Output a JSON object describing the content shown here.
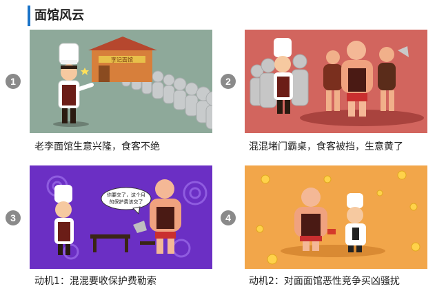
{
  "section": {
    "title": "面馆风云"
  },
  "panels": [
    {
      "number": "1",
      "caption": "老李面馆生意兴隆，食客不绝",
      "sign_text": "李记面馆",
      "bg": "#8ea99a"
    },
    {
      "number": "2",
      "caption": "混混堵门霸桌，食客被挡，生意黄了",
      "bg": "#d2655e"
    },
    {
      "number": "3",
      "caption": "动机1：混混要收保护费勒索",
      "bubble_line1": "你要交了，这个月",
      "bubble_line2": "的保护费该交了",
      "bg": "#6b2fc4"
    },
    {
      "number": "4",
      "caption": "动机2：对面面馆恶性竞争买凶骚扰",
      "bg": "#f2a64a"
    }
  ],
  "colors": {
    "accent": "#1a73c8",
    "badge": "#8a8a8a",
    "text": "#222222"
  },
  "icons": [
    "chef-figure",
    "thug-figure",
    "money-icon",
    "noodle-shop-icon"
  ]
}
